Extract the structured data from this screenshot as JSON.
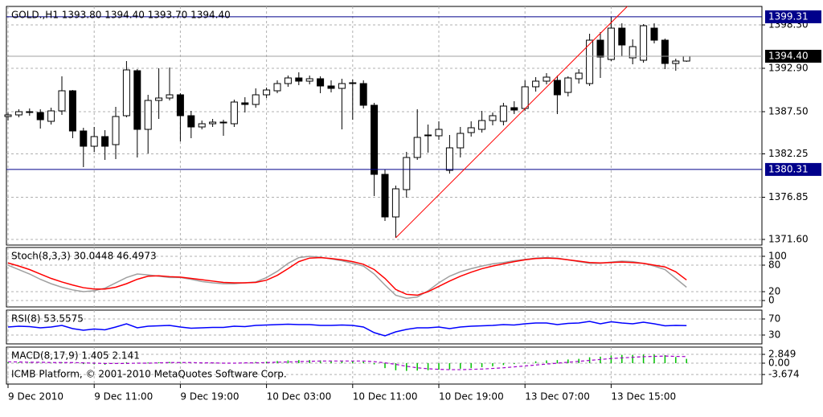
{
  "chart_data": [
    {
      "type": "candlestick",
      "title": "GOLD.,H1  1393.80 1394.40 1393.70 1394.40",
      "categories": [
        "9 Dec 2010",
        null,
        null,
        null,
        null,
        null,
        null,
        null,
        "9 Dec 11:00",
        null,
        null,
        null,
        null,
        null,
        null,
        null,
        "9 Dec 19:00",
        null,
        null,
        null,
        null,
        null,
        null,
        null,
        "10 Dec 03:00",
        null,
        null,
        null,
        null,
        null,
        null,
        null,
        "10 Dec 11:00",
        null,
        null,
        null,
        null,
        null,
        null,
        null,
        "10 Dec 19:00",
        null,
        null,
        null,
        null,
        null,
        null,
        null,
        "13 Dec 07:00",
        null,
        null,
        null,
        null,
        null,
        null,
        null,
        "13 Dec 15:00",
        null,
        null,
        null,
        null,
        null,
        null,
        null
      ],
      "open": [
        1386.9,
        1387.1,
        1387.5,
        1387.4,
        1386.3,
        1387.6,
        1390.1,
        1385.1,
        1383.2,
        1384.4,
        1383.4,
        1387.0,
        1392.6,
        1385.3,
        1388.9,
        1389.2,
        1389.6,
        1387.0,
        1385.6,
        1386.0,
        1386.2,
        1386.0,
        1388.6,
        1388.4,
        1389.6,
        1390.1,
        1391.0,
        1391.7,
        1391.3,
        1391.6,
        1390.7,
        1390.4,
        1391.0,
        1391.0,
        1388.3,
        1379.7,
        1374.4,
        1377.8,
        1381.8,
        1384.6,
        1384.5,
        1380.2,
        1383.0,
        1384.9,
        1385.3,
        1386.4,
        1386.3,
        1388.0,
        1387.9,
        1390.6,
        1391.3,
        1391.4,
        1389.9,
        1391.6,
        1391.0,
        1396.4,
        1394.0,
        1397.9,
        1394.2,
        1393.9,
        1397.9,
        1396.4,
        1393.5,
        1393.8
      ],
      "high": [
        1387.4,
        1387.8,
        1387.9,
        1387.8,
        1388.0,
        1391.9,
        1390.2,
        1385.5,
        1385.6,
        1385.2,
        1388.1,
        1393.8,
        1392.8,
        1389.6,
        1392.9,
        1393.0,
        1389.8,
        1387.6,
        1386.4,
        1386.6,
        1386.5,
        1389.0,
        1389.3,
        1390.4,
        1390.5,
        1391.4,
        1392.0,
        1392.4,
        1392.0,
        1391.9,
        1391.4,
        1391.6,
        1391.5,
        1391.4,
        1388.6,
        1380.3,
        1378.3,
        1382.5,
        1387.8,
        1385.9,
        1386.3,
        1384.6,
        1385.6,
        1386.3,
        1387.6,
        1387.4,
        1388.6,
        1388.8,
        1391.4,
        1391.8,
        1392.3,
        1392.0,
        1391.9,
        1392.8,
        1397.2,
        1397.4,
        1399.3,
        1398.5,
        1396.5,
        1398.4,
        1398.5,
        1396.6,
        1394.1,
        1394.4
      ],
      "low": [
        1386.4,
        1386.8,
        1387.0,
        1385.4,
        1385.9,
        1387.1,
        1384.2,
        1380.6,
        1382.5,
        1381.5,
        1381.6,
        1386.8,
        1381.8,
        1382.3,
        1386.6,
        1388.9,
        1383.8,
        1384.2,
        1385.3,
        1385.6,
        1384.5,
        1385.6,
        1387.4,
        1388.0,
        1389.2,
        1389.8,
        1390.6,
        1390.8,
        1390.9,
        1389.8,
        1389.9,
        1385.3,
        1386.5,
        1387.9,
        1377.0,
        1373.9,
        1371.8,
        1376.8,
        1381.5,
        1382.4,
        1384.0,
        1379.8,
        1381.8,
        1384.4,
        1384.9,
        1385.8,
        1385.8,
        1387.2,
        1387.6,
        1390.0,
        1390.9,
        1387.2,
        1389.4,
        1391.0,
        1390.7,
        1391.7,
        1393.8,
        1394.4,
        1393.4,
        1393.6,
        1396.0,
        1392.8,
        1392.6,
        1393.7
      ],
      "close": [
        1387.1,
        1387.5,
        1387.4,
        1386.5,
        1387.6,
        1390.1,
        1385.1,
        1383.2,
        1384.4,
        1383.2,
        1386.9,
        1392.7,
        1385.3,
        1388.9,
        1389.2,
        1389.6,
        1387.0,
        1385.6,
        1386.0,
        1386.2,
        1386.2,
        1388.7,
        1388.4,
        1389.6,
        1390.2,
        1391.0,
        1391.7,
        1391.3,
        1391.6,
        1390.7,
        1390.4,
        1391.0,
        1391.1,
        1388.3,
        1379.7,
        1374.4,
        1377.9,
        1381.8,
        1384.3,
        1384.5,
        1385.3,
        1383.0,
        1384.8,
        1385.5,
        1386.4,
        1387.0,
        1388.2,
        1387.7,
        1390.6,
        1391.3,
        1391.8,
        1389.6,
        1391.7,
        1392.3,
        1396.4,
        1394.3,
        1397.9,
        1395.8,
        1395.6,
        1398.2,
        1396.4,
        1393.5,
        1393.8,
        1394.4
      ],
      "ylim": [
        1370.9,
        1400.6
      ],
      "yticks": [
        {
          "value": 1398.3,
          "label": "1398.30"
        },
        {
          "value": 1392.9,
          "label": "1392.90"
        },
        {
          "value": 1387.5,
          "label": "1387.50"
        },
        1382.25,
        1376.85,
        {
          "value": 1371.6,
          "label": "1371.60"
        }
      ],
      "levels": [
        {
          "value": 1399.31,
          "color": "#00008b"
        },
        {
          "value": 1394.4,
          "label": "1394.40",
          "color": "#000000"
        },
        {
          "value": 1380.31,
          "color": "#00008b"
        }
      ],
      "trendline": {
        "x": [
          36,
          57.5
        ],
        "y": [
          1371.8,
          1400.6
        ],
        "color": "#ff0000"
      },
      "grid": true
    },
    {
      "type": "line",
      "title": "Stoch(8,3,3) 30.0448 46.4973",
      "series": [
        {
          "color": "#a0a0a0",
          "values": [
            80,
            70,
            60,
            48,
            38,
            30,
            24,
            20,
            22,
            28,
            40,
            52,
            60,
            58,
            55,
            52,
            52,
            48,
            43,
            40,
            38,
            38,
            40,
            42,
            52,
            66,
            84,
            97,
            100,
            98,
            94,
            90,
            84,
            78,
            60,
            35,
            12,
            5,
            8,
            22,
            40,
            55,
            65,
            72,
            78,
            83,
            86,
            90,
            93,
            96,
            97,
            96,
            92,
            88,
            84,
            84,
            87,
            89,
            88,
            84,
            78,
            70,
            50,
            30.0448
          ]
        },
        {
          "color": "#ff0000",
          "values": [
            85,
            78,
            70,
            60,
            50,
            42,
            35,
            29,
            26,
            26,
            30,
            38,
            48,
            55,
            56,
            54,
            53,
            50,
            47,
            44,
            41,
            40,
            40,
            41,
            46,
            57,
            72,
            88,
            96,
            97,
            95,
            92,
            88,
            82,
            70,
            50,
            25,
            14,
            12,
            20,
            32,
            44,
            55,
            64,
            72,
            78,
            83,
            88,
            92,
            95,
            96,
            95,
            92,
            89,
            86,
            85,
            86,
            87,
            86,
            84,
            80,
            76,
            65,
            46.4973
          ]
        }
      ],
      "ylim": [
        -14.5,
        120
      ],
      "yticks": [
        100,
        80,
        20,
        0
      ],
      "grid": true
    },
    {
      "type": "line",
      "title": "RSI(8) 53.5575",
      "series": [
        {
          "color": "#0000ff",
          "values": [
            50,
            52,
            51,
            48,
            50,
            54,
            46,
            42,
            45,
            43,
            50,
            58,
            48,
            52,
            53,
            54,
            50,
            47,
            48,
            49,
            49,
            52,
            51,
            54,
            55,
            56,
            57,
            56,
            56,
            54,
            54,
            55,
            54,
            50,
            36,
            28,
            38,
            44,
            48,
            48,
            50,
            46,
            50,
            52,
            53,
            54,
            56,
            55,
            58,
            60,
            60,
            56,
            59,
            60,
            64,
            58,
            63,
            60,
            58,
            62,
            58,
            53,
            54,
            53.5575
          ]
        }
      ],
      "ylim": [
        8,
        92
      ],
      "yticks": [
        70,
        30
      ],
      "grid": true
    },
    {
      "type": "macd",
      "title": "MACD(8,17,9) 1.405 2.141",
      "annotation": "ICMB Platform, © 2001-2010 MetaQuotes Software Corp.",
      "series": [
        {
          "style": "bar",
          "color": "#00c000",
          "values": [
            0.3,
            0.3,
            0.2,
            0.1,
            0.1,
            0.3,
            0.0,
            -0.3,
            -0.4,
            -0.5,
            -0.2,
            0.3,
            0.1,
            0.2,
            0.3,
            0.4,
            0.2,
            0.0,
            -0.1,
            -0.1,
            -0.1,
            0.1,
            0.2,
            0.4,
            0.5,
            0.7,
            0.9,
            1.0,
            1.0,
            0.9,
            0.8,
            0.8,
            0.7,
            0.5,
            -0.4,
            -1.6,
            -2.3,
            -2.5,
            -2.4,
            -2.3,
            -2.1,
            -2.0,
            -1.8,
            -1.6,
            -1.3,
            -1.0,
            -0.6,
            -0.3,
            0.2,
            0.6,
            0.9,
            1.0,
            1.2,
            1.4,
            1.9,
            2.1,
            2.5,
            2.7,
            2.7,
            2.8,
            2.8,
            2.6,
            2.0,
            1.405
          ]
        },
        {
          "style": "dashed",
          "color": "#a000c8",
          "values": [
            0.4,
            0.4,
            0.3,
            0.3,
            0.2,
            0.2,
            0.2,
            0.1,
            0.0,
            -0.1,
            -0.1,
            -0.1,
            0.0,
            0.0,
            0.1,
            0.2,
            0.2,
            0.2,
            0.1,
            0.1,
            0.0,
            0.0,
            0.1,
            0.1,
            0.2,
            0.3,
            0.4,
            0.5,
            0.6,
            0.7,
            0.7,
            0.7,
            0.7,
            0.7,
            0.5,
            0.1,
            -0.4,
            -1.0,
            -1.5,
            -1.8,
            -2.0,
            -2.1,
            -2.1,
            -2.0,
            -1.9,
            -1.7,
            -1.5,
            -1.2,
            -0.9,
            -0.6,
            -0.3,
            0.0,
            0.3,
            0.6,
            0.9,
            1.2,
            1.5,
            1.7,
            1.9,
            2.1,
            2.2,
            2.3,
            2.2,
            2.141
          ]
        }
      ],
      "ylim": [
        -6.76,
        5.2
      ],
      "yticks": [
        2.849,
        {
          "value": 0,
          "label": "0.00"
        },
        -3.674
      ],
      "grid": true
    }
  ]
}
